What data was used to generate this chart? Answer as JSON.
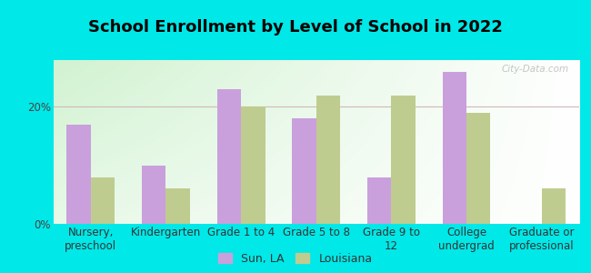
{
  "title": "School Enrollment by Level of School in 2022",
  "categories": [
    "Nursery,\npreschool",
    "Kindergarten",
    "Grade 1 to 4",
    "Grade 5 to 8",
    "Grade 9 to\n12",
    "College\nundergrad",
    "Graduate or\nprofessional"
  ],
  "sun_la": [
    17,
    10,
    23,
    18,
    8,
    26,
    0
  ],
  "louisiana": [
    8,
    6,
    20,
    22,
    22,
    19,
    6
  ],
  "sun_color": "#c9a0dc",
  "louisiana_color": "#bfcc8f",
  "bar_width": 0.32,
  "ylim": [
    0,
    28
  ],
  "yticks": [
    0,
    20
  ],
  "ytick_labels": [
    "0%",
    "20%"
  ],
  "background_outer": "#00e8e8",
  "grid_color": "#d0b8b8",
  "legend_sun": "Sun, LA",
  "legend_louisiana": "Louisiana",
  "watermark": "City-Data.com",
  "title_fontsize": 13,
  "axis_fontsize": 8.5
}
